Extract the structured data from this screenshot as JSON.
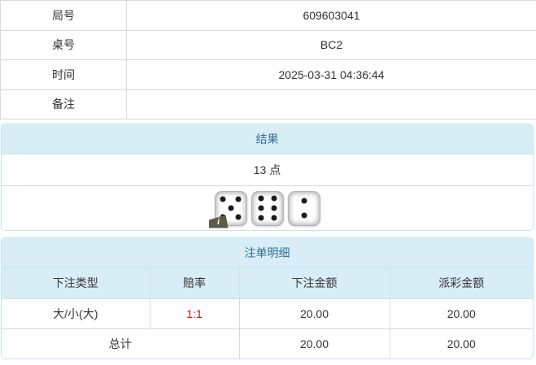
{
  "info_table": {
    "rows": [
      {
        "label": "局号",
        "value": "609603041"
      },
      {
        "label": "桌号",
        "value": "BC2"
      },
      {
        "label": "时间",
        "value": "2025-03-31 04:36:44"
      },
      {
        "label": "备注",
        "value": ""
      }
    ]
  },
  "result_panel": {
    "title": "结果",
    "points": "13 点",
    "dice": [
      5,
      6,
      2
    ],
    "info_icon": "i"
  },
  "bets_panel": {
    "title": "注单明细",
    "columns": [
      "下注类型",
      "赔率",
      "下注金额",
      "派彩金额"
    ],
    "rows": [
      {
        "bet_type": "大/小(大)",
        "odds": "1:1",
        "bet_amount": "20.00",
        "payout_amount": "20.00"
      }
    ],
    "total": {
      "label": "总计",
      "bet_amount": "20.00",
      "payout_amount": "20.00"
    }
  },
  "colors": {
    "header_bg": "#d9edf7",
    "header_text": "#31708f",
    "panel_border": "#bce8f1",
    "table_border": "#d9d9d9",
    "text": "#333333",
    "odds_red": "#ff0000"
  }
}
